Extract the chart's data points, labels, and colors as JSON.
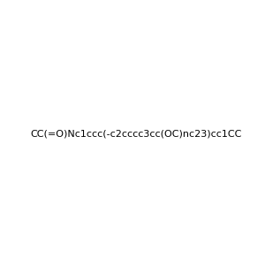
{
  "smiles": "CC(=O)Nc1ccc(-c2cccc3cc(OC)nc23)cc1CC",
  "title": "",
  "background_color": "#f0f0f0",
  "figure_size": [
    3.0,
    3.0
  ],
  "dpi": 100
}
